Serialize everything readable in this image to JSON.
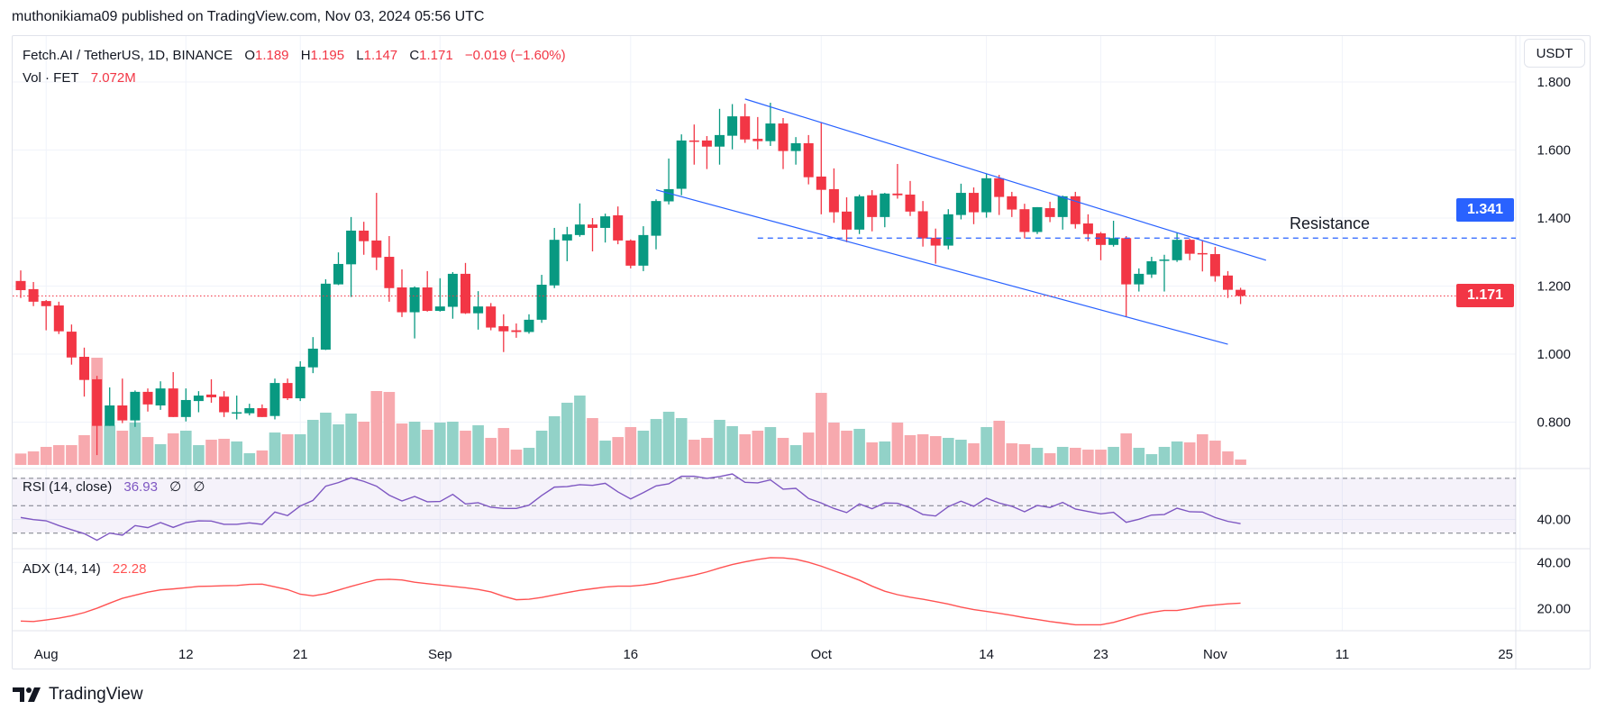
{
  "header": {
    "publish_line": "muthonikiama09 published on TradingView.com, Nov 03, 2024 05:56 UTC"
  },
  "legend": {
    "symbol": "Fetch.AI / TetherUS, 1D, BINANCE",
    "o_label": "O",
    "o": "1.189",
    "h_label": "H",
    "h": "1.195",
    "l_label": "L",
    "l": "1.147",
    "c_label": "C",
    "c": "1.171",
    "change": "−0.019 (−1.60%)",
    "vol_label": "Vol · FET",
    "vol": "7.072M"
  },
  "rsi_legend": {
    "label": "RSI (14, close)",
    "value": "36.93",
    "extra1": "∅",
    "extra2": "∅"
  },
  "adx_legend": {
    "label": "ADX (14, 14)",
    "value": "22.28"
  },
  "currency_button": "USDT",
  "price_tags": {
    "resistance": "1.341",
    "last": "1.171"
  },
  "annotation": {
    "resistance_text": "Resistance"
  },
  "logo": {
    "text": "TradingView"
  },
  "colors": {
    "up": "#089981",
    "down": "#F23645",
    "vol_up": "#92D2C8",
    "vol_down": "#F7A9AE",
    "rsi": "#7E57C2",
    "adx": "#FF5252",
    "drawing": "#2962FF",
    "last_price": "#F23645"
  },
  "chart_data": {
    "type": "candlestick",
    "title": "Fetch.AI / TetherUS, 1D, BINANCE",
    "price_axis": {
      "ticks": [
        "0.800",
        "1.000",
        "1.200",
        "1.400",
        "1.600",
        "1.800"
      ],
      "ylim": [
        0.77,
        1.83
      ],
      "unit": "USDT"
    },
    "time_axis": {
      "ticks": [
        {
          "label": "Aug",
          "date": "2024-08-01"
        },
        {
          "label": "12",
          "date": "2024-08-12"
        },
        {
          "label": "21",
          "date": "2024-08-21"
        },
        {
          "label": "Sep",
          "date": "2024-09-01"
        },
        {
          "label": "16",
          "date": "2024-09-16"
        },
        {
          "label": "Oct",
          "date": "2024-10-01"
        },
        {
          "label": "14",
          "date": "2024-10-14"
        },
        {
          "label": "23",
          "date": "2024-10-23"
        },
        {
          "label": "Nov",
          "date": "2024-11-01"
        },
        {
          "label": "11",
          "date": "2024-11-11"
        },
        {
          "label": "25",
          "date": "2024-11-25"
        }
      ]
    },
    "grid": true,
    "candle_fields": [
      "date",
      "open",
      "high",
      "low",
      "close",
      "volume_millions"
    ],
    "candles": [
      [
        "2024-07-30",
        1.215,
        1.246,
        1.165,
        1.188,
        14.9
      ],
      [
        "2024-07-31",
        1.191,
        1.212,
        1.141,
        1.154,
        17.7
      ],
      [
        "2024-08-01",
        1.156,
        1.159,
        1.07,
        1.141,
        23.6
      ],
      [
        "2024-08-02",
        1.143,
        1.154,
        1.059,
        1.067,
        25.9
      ],
      [
        "2024-08-03",
        1.066,
        1.087,
        0.969,
        0.99,
        25.9
      ],
      [
        "2024-08-04",
        0.992,
        1.019,
        0.875,
        0.924,
        38.9
      ],
      [
        "2024-08-05",
        0.926,
        0.936,
        0.703,
        0.789,
        140.3
      ],
      [
        "2024-08-06",
        0.789,
        0.902,
        0.789,
        0.849,
        51.5
      ],
      [
        "2024-08-07",
        0.849,
        0.928,
        0.797,
        0.805,
        44.8
      ],
      [
        "2024-08-08",
        0.805,
        0.893,
        0.786,
        0.889,
        55.4
      ],
      [
        "2024-08-09",
        0.889,
        0.899,
        0.831,
        0.852,
        36.5
      ],
      [
        "2024-08-10",
        0.849,
        0.92,
        0.836,
        0.899,
        27.1
      ],
      [
        "2024-08-11",
        0.899,
        0.947,
        0.815,
        0.815,
        41.3
      ],
      [
        "2024-08-12",
        0.815,
        0.899,
        0.802,
        0.865,
        44.8
      ],
      [
        "2024-08-13",
        0.862,
        0.891,
        0.829,
        0.878,
        25.9
      ],
      [
        "2024-08-14",
        0.881,
        0.926,
        0.857,
        0.873,
        33.0
      ],
      [
        "2024-08-15",
        0.875,
        0.891,
        0.815,
        0.829,
        34.2
      ],
      [
        "2024-08-16",
        0.826,
        0.878,
        0.808,
        0.829,
        30.7
      ],
      [
        "2024-08-17",
        0.826,
        0.854,
        0.82,
        0.841,
        15.3
      ],
      [
        "2024-08-18",
        0.841,
        0.852,
        0.815,
        0.815,
        18.9
      ],
      [
        "2024-08-19",
        0.818,
        0.928,
        0.808,
        0.915,
        42.4
      ],
      [
        "2024-08-20",
        0.915,
        0.928,
        0.865,
        0.87,
        40.1
      ],
      [
        "2024-08-21",
        0.87,
        0.979,
        0.862,
        0.963,
        40.1
      ],
      [
        "2024-08-22",
        0.961,
        1.05,
        0.944,
        1.016,
        59.0
      ],
      [
        "2024-08-23",
        1.013,
        1.22,
        1.012,
        1.207,
        68.4
      ],
      [
        "2024-08-24",
        1.205,
        1.299,
        1.203,
        1.265,
        53.1
      ],
      [
        "2024-08-25",
        1.264,
        1.403,
        1.168,
        1.363,
        67.2
      ],
      [
        "2024-08-26",
        1.363,
        1.389,
        1.292,
        1.332,
        56.6
      ],
      [
        "2024-08-27",
        1.334,
        1.474,
        1.247,
        1.284,
        96.7
      ],
      [
        "2024-08-28",
        1.286,
        1.347,
        1.154,
        1.194,
        95.5
      ],
      [
        "2024-08-29",
        1.196,
        1.249,
        1.109,
        1.123,
        54.2
      ],
      [
        "2024-08-30",
        1.123,
        1.199,
        1.046,
        1.196,
        56.6
      ],
      [
        "2024-08-31",
        1.196,
        1.244,
        1.125,
        1.127,
        46.0
      ],
      [
        "2024-09-01",
        1.127,
        1.223,
        1.125,
        1.14,
        55.4
      ],
      [
        "2024-09-02",
        1.139,
        1.241,
        1.104,
        1.236,
        56.6
      ],
      [
        "2024-09-03",
        1.236,
        1.268,
        1.118,
        1.12,
        44.8
      ],
      [
        "2024-09-04",
        1.12,
        1.185,
        1.072,
        1.14,
        51.9
      ],
      [
        "2024-09-05",
        1.14,
        1.15,
        1.07,
        1.078,
        35.4
      ],
      [
        "2024-09-06",
        1.082,
        1.117,
        1.006,
        1.067,
        48.3
      ],
      [
        "2024-09-07",
        1.07,
        1.09,
        1.048,
        1.065,
        20.0
      ],
      [
        "2024-09-08",
        1.065,
        1.117,
        1.06,
        1.101,
        22.4
      ],
      [
        "2024-09-09",
        1.101,
        1.233,
        1.092,
        1.204,
        44.8
      ],
      [
        "2024-09-10",
        1.202,
        1.371,
        1.194,
        1.336,
        63.7
      ],
      [
        "2024-09-11",
        1.334,
        1.374,
        1.273,
        1.352,
        81.4
      ],
      [
        "2024-09-12",
        1.35,
        1.443,
        1.345,
        1.381,
        90.8
      ],
      [
        "2024-09-13",
        1.381,
        1.4,
        1.302,
        1.371,
        61.3
      ],
      [
        "2024-09-14",
        1.371,
        1.413,
        1.328,
        1.405,
        31.8
      ],
      [
        "2024-09-15",
        1.408,
        1.434,
        1.323,
        1.334,
        36.5
      ],
      [
        "2024-09-16",
        1.334,
        1.337,
        1.252,
        1.26,
        49.5
      ],
      [
        "2024-09-17",
        1.26,
        1.376,
        1.244,
        1.35,
        44.8
      ],
      [
        "2024-09-18",
        1.348,
        1.455,
        1.308,
        1.45,
        60.1
      ],
      [
        "2024-09-19",
        1.449,
        1.575,
        1.44,
        1.485,
        69.6
      ],
      [
        "2024-09-20",
        1.486,
        1.646,
        1.467,
        1.628,
        61.3
      ],
      [
        "2024-09-21",
        1.628,
        1.675,
        1.557,
        1.625,
        33.0
      ],
      [
        "2024-09-22",
        1.628,
        1.641,
        1.544,
        1.61,
        35.4
      ],
      [
        "2024-09-23",
        1.61,
        1.721,
        1.557,
        1.644,
        59.0
      ],
      [
        "2024-09-24",
        1.642,
        1.735,
        1.602,
        1.699,
        50.7
      ],
      [
        "2024-09-25",
        1.699,
        1.736,
        1.621,
        1.631,
        40.1
      ],
      [
        "2024-09-26",
        1.633,
        1.697,
        1.602,
        1.626,
        44.8
      ],
      [
        "2024-09-27",
        1.626,
        1.739,
        1.612,
        1.678,
        49.5
      ],
      [
        "2024-09-28",
        1.678,
        1.694,
        1.544,
        1.597,
        35.4
      ],
      [
        "2024-09-29",
        1.597,
        1.638,
        1.557,
        1.62,
        25.9
      ],
      [
        "2024-09-30",
        1.62,
        1.644,
        1.499,
        1.52,
        42.4
      ],
      [
        "2024-10-01",
        1.522,
        1.681,
        1.411,
        1.483,
        94.3
      ],
      [
        "2024-10-02",
        1.485,
        1.546,
        1.386,
        1.417,
        55.4
      ],
      [
        "2024-10-03",
        1.419,
        1.461,
        1.329,
        1.366,
        44.8
      ],
      [
        "2024-10-04",
        1.366,
        1.469,
        1.353,
        1.464,
        47.2
      ],
      [
        "2024-10-05",
        1.467,
        1.482,
        1.361,
        1.403,
        29.5
      ],
      [
        "2024-10-06",
        1.403,
        1.474,
        1.373,
        1.472,
        30.7
      ],
      [
        "2024-10-07",
        1.472,
        1.559,
        1.457,
        1.467,
        55.4
      ],
      [
        "2024-10-08",
        1.469,
        1.509,
        1.406,
        1.419,
        38.9
      ],
      [
        "2024-10-09",
        1.42,
        1.45,
        1.316,
        1.34,
        40.1
      ],
      [
        "2024-10-10",
        1.342,
        1.369,
        1.266,
        1.319,
        37.7
      ],
      [
        "2024-10-11",
        1.319,
        1.426,
        1.308,
        1.411,
        35.4
      ],
      [
        "2024-10-12",
        1.409,
        1.501,
        1.396,
        1.474,
        33.0
      ],
      [
        "2024-10-13",
        1.474,
        1.49,
        1.382,
        1.417,
        28.3
      ],
      [
        "2024-10-14",
        1.417,
        1.53,
        1.401,
        1.517,
        49.5
      ],
      [
        "2024-10-15",
        1.517,
        1.527,
        1.409,
        1.462,
        57.8
      ],
      [
        "2024-10-16",
        1.464,
        1.477,
        1.403,
        1.425,
        28.3
      ],
      [
        "2024-10-17",
        1.426,
        1.442,
        1.34,
        1.359,
        27.1
      ],
      [
        "2024-10-18",
        1.359,
        1.432,
        1.353,
        1.432,
        22.4
      ],
      [
        "2024-10-19",
        1.429,
        1.448,
        1.388,
        1.403,
        15.3
      ],
      [
        "2024-10-20",
        1.403,
        1.466,
        1.366,
        1.464,
        23.6
      ],
      [
        "2024-10-21",
        1.464,
        1.477,
        1.369,
        1.382,
        22.4
      ],
      [
        "2024-10-22",
        1.384,
        1.411,
        1.332,
        1.353,
        20.0
      ],
      [
        "2024-10-23",
        1.355,
        1.359,
        1.276,
        1.321,
        20.0
      ],
      [
        "2024-10-24",
        1.321,
        1.392,
        1.316,
        1.341,
        23.6
      ],
      [
        "2024-10-25",
        1.341,
        1.347,
        1.109,
        1.205,
        41.3
      ],
      [
        "2024-10-26",
        1.205,
        1.252,
        1.184,
        1.236,
        22.4
      ],
      [
        "2024-10-27",
        1.234,
        1.286,
        1.224,
        1.273,
        14.1
      ],
      [
        "2024-10-28",
        1.275,
        1.292,
        1.184,
        1.278,
        23.6
      ],
      [
        "2024-10-29",
        1.276,
        1.357,
        1.271,
        1.336,
        30.7
      ],
      [
        "2024-10-30",
        1.336,
        1.339,
        1.276,
        1.295,
        29.5
      ],
      [
        "2024-10-31",
        1.297,
        1.334,
        1.243,
        1.296,
        40.1
      ],
      [
        "2024-11-01",
        1.294,
        1.315,
        1.213,
        1.229,
        31.8
      ],
      [
        "2024-11-02",
        1.231,
        1.244,
        1.165,
        1.189,
        17.7
      ],
      [
        "2024-11-03",
        1.189,
        1.195,
        1.147,
        1.171,
        7.072
      ]
    ],
    "rsi": {
      "name": "RSI (14, close)",
      "bands": [
        70,
        50,
        30
      ],
      "ticks": [
        "40.00"
      ],
      "tick_values": [
        40
      ],
      "values": [
        41.4,
        39.9,
        39.0,
        35.5,
        32.5,
        29.6,
        24.8,
        30.0,
        28.5,
        35.5,
        34.0,
        37.7,
        34.2,
        37.7,
        39.0,
        38.8,
        36.4,
        36.4,
        37.5,
        36.4,
        45.4,
        42.8,
        49.8,
        53.9,
        64.3,
        66.9,
        70.4,
        67.8,
        64.3,
        57.7,
        53.5,
        56.8,
        52.9,
        53.1,
        58.3,
        51.3,
        52.2,
        48.9,
        48.0,
        48.0,
        50.4,
        57.5,
        63.6,
        64.0,
        65.4,
        64.9,
        66.4,
        60.1,
        55.0,
        59.6,
        64.5,
        66.0,
        71.5,
        71.5,
        70.0,
        71.3,
        73.2,
        67.1,
        66.7,
        68.9,
        62.1,
        62.7,
        55.3,
        52.0,
        48.0,
        45.0,
        51.3,
        47.8,
        52.0,
        51.8,
        48.5,
        43.6,
        42.5,
        49.3,
        53.3,
        49.6,
        55.5,
        52.0,
        49.6,
        45.6,
        50.2,
        48.7,
        52.4,
        47.6,
        45.8,
        44.1,
        45.2,
        37.9,
        40.1,
        43.2,
        43.6,
        48.2,
        45.6,
        45.4,
        41.4,
        38.6,
        36.93
      ]
    },
    "adx": {
      "name": "ADX (14, 14)",
      "ticks": [
        "40.00",
        "20.00"
      ],
      "tick_values": [
        40,
        20
      ],
      "values": [
        14.5,
        14.3,
        15.0,
        15.8,
        16.8,
        18.2,
        20.1,
        22.3,
        24.4,
        25.8,
        27.1,
        28.1,
        28.5,
        29.0,
        29.6,
        29.7,
        29.9,
        30.0,
        30.5,
        30.6,
        29.4,
        28.2,
        26.2,
        25.5,
        26.4,
        28.0,
        29.6,
        31.1,
        32.5,
        32.7,
        32.4,
        31.4,
        30.8,
        30.2,
        29.6,
        29.0,
        28.3,
        27.2,
        25.3,
        23.8,
        24.0,
        24.8,
        25.9,
        26.9,
        27.9,
        28.6,
        29.3,
        29.7,
        29.7,
        30.2,
        31.0,
        32.3,
        33.4,
        34.5,
        35.9,
        37.6,
        39.1,
        40.3,
        41.3,
        42.1,
        42.0,
        41.4,
        40.1,
        38.4,
        36.4,
        34.4,
        32.3,
        29.7,
        27.5,
        26.0,
        24.9,
        24.0,
        23.0,
        21.9,
        20.6,
        19.5,
        18.7,
        17.9,
        17.0,
        16.0,
        15.2,
        14.3,
        13.6,
        12.9,
        12.9,
        12.9,
        13.9,
        15.5,
        17.1,
        18.3,
        19.1,
        19.1,
        20.0,
        21.0,
        21.5,
        22.0,
        22.28
      ]
    },
    "drawings": {
      "channel_upper": [
        [
          "2024-09-25",
          1.75
        ],
        [
          "2024-11-05",
          1.276
        ]
      ],
      "channel_lower": [
        [
          "2024-09-18",
          1.483
        ],
        [
          "2024-11-02",
          1.029
        ]
      ],
      "resistance_level": {
        "start": "2024-09-26",
        "price": 1.341
      },
      "last_price_line": 1.171
    }
  }
}
